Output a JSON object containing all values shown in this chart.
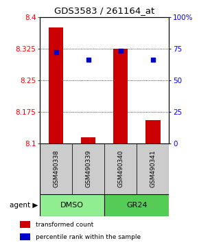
{
  "title": "GDS3583 / 261164_at",
  "samples": [
    "GSM490338",
    "GSM490339",
    "GSM490340",
    "GSM490341"
  ],
  "bar_values": [
    8.375,
    8.115,
    8.325,
    8.155
  ],
  "bar_bottom": 8.1,
  "percentile_values": [
    0.72,
    0.66,
    0.73,
    0.66
  ],
  "ylim": [
    8.1,
    8.4
  ],
  "yticks_left": [
    8.1,
    8.175,
    8.25,
    8.325,
    8.4
  ],
  "yticks_right": [
    0,
    25,
    50,
    75,
    100
  ],
  "ytick_right_labels": [
    "0",
    "25",
    "50",
    "75",
    "100%"
  ],
  "bar_color": "#cc0000",
  "percentile_color": "#0000cc",
  "groups": [
    {
      "label": "DMSO",
      "samples": [
        0,
        1
      ],
      "color": "#90ee90"
    },
    {
      "label": "GR24",
      "samples": [
        2,
        3
      ],
      "color": "#55cc55"
    }
  ],
  "group_label": "agent",
  "legend": [
    {
      "color": "#cc0000",
      "label": "transformed count"
    },
    {
      "color": "#0000cc",
      "label": "percentile rank within the sample"
    }
  ],
  "bg_color": "#ffffff",
  "sample_label_bg": "#cccccc",
  "bar_width": 0.45
}
